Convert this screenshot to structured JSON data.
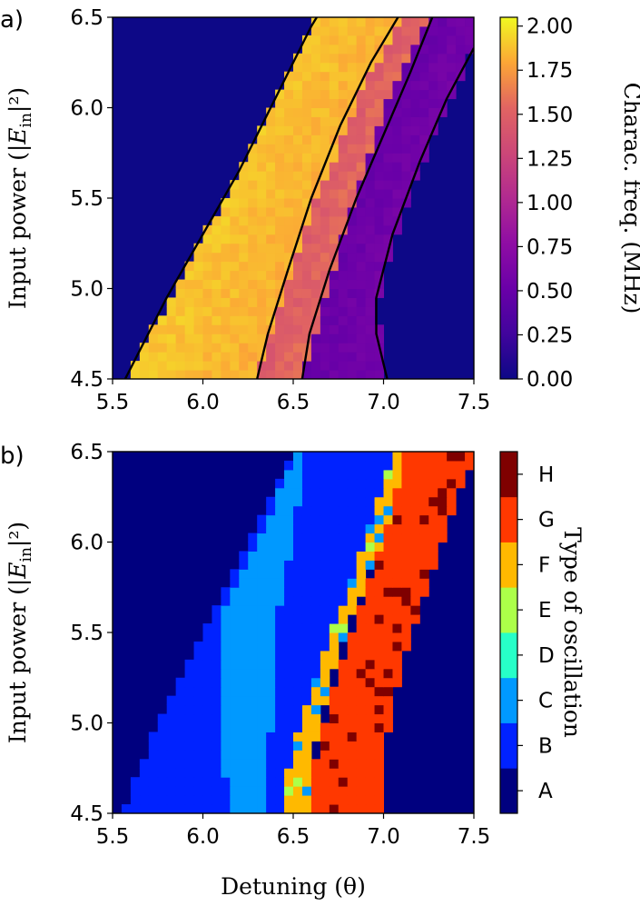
{
  "figure": {
    "background": "#ffffff"
  },
  "chart_data": [
    {
      "type": "heatmap",
      "panel_label": "a)",
      "xlabel": "",
      "ylabel": "Input power (|E_in|²)",
      "xlim": [
        5.5,
        7.5
      ],
      "ylim": [
        4.5,
        6.5
      ],
      "x_ticks": [
        "5.5",
        "6.0",
        "6.5",
        "7.0",
        "7.5"
      ],
      "y_ticks": [
        "4.5",
        "5.0",
        "5.5",
        "6.0",
        "6.5"
      ],
      "background_value_color": "#0d0887",
      "colorbar": {
        "label": "Charac. freq. (MHz)",
        "colormap": "plasma",
        "range": [
          0,
          2.05
        ],
        "ticks": [
          "0.00",
          "0.25",
          "0.50",
          "0.75",
          "1.00",
          "1.25",
          "1.50",
          "1.75",
          "2.00"
        ]
      },
      "regions": [
        {
          "name": "yellow band",
          "value_range": [
            1.8,
            2.0
          ],
          "left_boundary": [
            [
              5.57,
              4.5
            ],
            [
              6.12,
              5.5
            ],
            [
              6.48,
              6.2
            ],
            [
              6.63,
              6.5
            ]
          ],
          "right_boundary": [
            [
              6.3,
              4.5
            ],
            [
              6.55,
              5.3
            ],
            [
              6.88,
              6.1
            ],
            [
              7.1,
              6.5
            ]
          ]
        },
        {
          "name": "orange band",
          "value_range": [
            1.3,
            1.6
          ],
          "left_boundary": [
            [
              6.3,
              4.5
            ],
            [
              6.55,
              5.3
            ],
            [
              6.88,
              6.1
            ],
            [
              7.1,
              6.5
            ]
          ],
          "right_boundary": [
            [
              6.55,
              4.5
            ],
            [
              6.78,
              5.3
            ],
            [
              7.05,
              6.1
            ],
            [
              7.25,
              6.5
            ]
          ]
        },
        {
          "name": "purple band",
          "value_range": [
            0.4,
            0.6
          ],
          "left_boundary": [
            [
              6.55,
              4.5
            ],
            [
              6.78,
              5.3
            ],
            [
              7.05,
              6.1
            ],
            [
              7.25,
              6.5
            ]
          ],
          "right_boundary": [
            [
              7.02,
              4.5
            ],
            [
              6.96,
              4.9
            ],
            [
              7.1,
              5.4
            ],
            [
              7.3,
              5.9
            ],
            [
              7.5,
              6.33
            ]
          ]
        }
      ],
      "boundary_lines": [
        [
          [
            5.57,
            4.5
          ],
          [
            5.8,
            4.95
          ],
          [
            6.0,
            5.3
          ],
          [
            6.2,
            5.65
          ],
          [
            6.4,
            6.05
          ],
          [
            6.6,
            6.45
          ],
          [
            6.63,
            6.5
          ]
        ],
        [
          [
            6.3,
            4.5
          ],
          [
            6.36,
            4.75
          ],
          [
            6.47,
            5.1
          ],
          [
            6.6,
            5.5
          ],
          [
            6.76,
            5.9
          ],
          [
            6.93,
            6.25
          ],
          [
            7.08,
            6.5
          ]
        ],
        [
          [
            6.55,
            4.5
          ],
          [
            6.59,
            4.75
          ],
          [
            6.7,
            5.1
          ],
          [
            6.85,
            5.5
          ],
          [
            7.0,
            5.85
          ],
          [
            7.15,
            6.2
          ],
          [
            7.27,
            6.5
          ]
        ],
        [
          [
            7.02,
            4.5
          ],
          [
            6.96,
            4.75
          ],
          [
            6.96,
            4.95
          ],
          [
            7.05,
            5.3
          ],
          [
            7.2,
            5.7
          ],
          [
            7.35,
            6.05
          ],
          [
            7.5,
            6.33
          ]
        ]
      ]
    },
    {
      "type": "heatmap",
      "panel_label": "b)",
      "xlabel": "Detuning (θ)",
      "ylabel": "Input power (|E_in|²)",
      "xlim": [
        5.5,
        7.5
      ],
      "ylim": [
        4.5,
        6.5
      ],
      "x_ticks": [
        "5.5",
        "6.0",
        "6.5",
        "7.0",
        "7.5"
      ],
      "y_ticks": [
        "4.5",
        "5.0",
        "5.5",
        "6.0",
        "6.5"
      ],
      "colorbar": {
        "label": "Type of oscillation",
        "categories": [
          "A",
          "B",
          "C",
          "D",
          "E",
          "F",
          "G",
          "H"
        ],
        "colors": [
          "#00007f",
          "#0022ff",
          "#0099ff",
          "#27ffc8",
          "#acff49",
          "#ffb900",
          "#ff3800",
          "#7f0000"
        ]
      },
      "regions": [
        {
          "category": "B",
          "left_boundary": [
            [
              5.55,
              4.5
            ],
            [
              5.75,
              5.0
            ],
            [
              6.0,
              5.5
            ],
            [
              6.25,
              6.0
            ],
            [
              6.5,
              6.5
            ]
          ],
          "right_boundary": [
            [
              6.62,
              4.5
            ],
            [
              6.6,
              4.8
            ],
            [
              6.68,
              5.3
            ],
            [
              6.82,
              5.8
            ],
            [
              7.02,
              6.2
            ],
            [
              7.05,
              6.5
            ]
          ]
        },
        {
          "category": "C",
          "left_boundary": [
            [
              6.14,
              4.5
            ],
            [
              6.1,
              5.0
            ],
            [
              6.1,
              5.6
            ],
            [
              6.3,
              6.0
            ],
            [
              6.52,
              6.5
            ]
          ],
          "right_boundary": [
            [
              6.37,
              4.5
            ],
            [
              6.37,
              4.9
            ],
            [
              6.4,
              5.3
            ],
            [
              6.42,
              5.6
            ],
            [
              6.5,
              6.0
            ],
            [
              6.57,
              6.5
            ]
          ]
        },
        {
          "category": "F",
          "left_boundary": [
            [
              6.45,
              4.5
            ],
            [
              6.48,
              4.8
            ],
            [
              6.6,
              5.2
            ],
            [
              6.75,
              5.6
            ],
            [
              6.9,
              6.0
            ],
            [
              7.05,
              6.5
            ]
          ],
          "right_boundary": [
            [
              6.6,
              4.5
            ],
            [
              6.6,
              4.8
            ],
            [
              6.7,
              5.2
            ],
            [
              6.82,
              5.6
            ],
            [
              7.0,
              6.0
            ],
            [
              7.12,
              6.5
            ]
          ]
        },
        {
          "category": "G",
          "left_boundary": [
            [
              6.6,
              4.5
            ],
            [
              6.62,
              4.8
            ],
            [
              6.72,
              5.2
            ],
            [
              6.85,
              5.6
            ],
            [
              7.0,
              6.0
            ],
            [
              7.12,
              6.5
            ]
          ],
          "right_boundary": [
            [
              7.0,
              4.5
            ],
            [
              7.02,
              4.9
            ],
            [
              7.1,
              5.3
            ],
            [
              7.22,
              5.7
            ],
            [
              7.35,
              6.1
            ],
            [
              7.5,
              6.45
            ]
          ]
        }
      ]
    }
  ]
}
